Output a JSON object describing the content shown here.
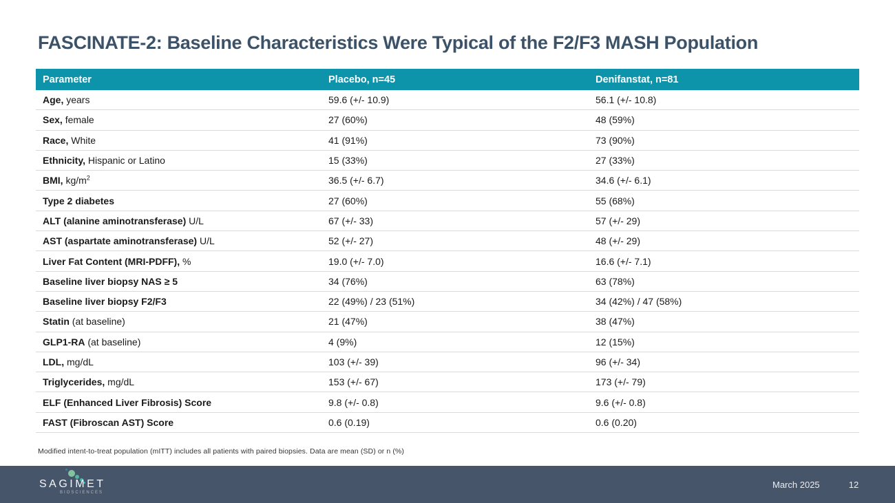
{
  "slide": {
    "title": "FASCINATE-2: Baseline Characteristics Were Typical of the F2/F3 MASH Population",
    "footnote": "Modified intent-to-treat population (mITT) includes all patients with paired biopsies. Data are mean (SD) or n (%)"
  },
  "colors": {
    "header_bg": "#0e94aa",
    "title_text": "#3c5268",
    "footer_bg": "#47556b",
    "row_border": "#d9d9d9",
    "logo_dot_dark_teal": "#2d8a8f",
    "logo_dot_mint": "#82c4a1",
    "logo_dot_teal_green": "#52b69e",
    "logo_dot_teal": "#44b4ae",
    "logo_dot_cyan": "#3db0d6"
  },
  "table": {
    "headers": [
      "Parameter",
      "Placebo, n=45",
      "Denifanstat, n=81"
    ],
    "rows": [
      {
        "bold": "Age,",
        "rest": " years",
        "placebo": "59.6 (+/- 10.9)",
        "denifanstat": "56.1 (+/- 10.8)"
      },
      {
        "bold": "Sex,",
        "rest": " female",
        "placebo": "27 (60%)",
        "denifanstat": "48 (59%)"
      },
      {
        "bold": "Race,",
        "rest": " White",
        "placebo": "41 (91%)",
        "denifanstat": "73 (90%)"
      },
      {
        "bold": "Ethnicity,",
        "rest": " Hispanic or Latino",
        "placebo": "15 (33%)",
        "denifanstat": "27 (33%)"
      },
      {
        "bold": "BMI,",
        "rest": " kg/m",
        "sup": "2",
        "placebo": "36.5 (+/- 6.7)",
        "denifanstat": "34.6 (+/- 6.1)"
      },
      {
        "bold": "Type 2 diabetes",
        "rest": "",
        "placebo": "27 (60%)",
        "denifanstat": "55 (68%)"
      },
      {
        "bold": "ALT (alanine aminotransferase)",
        "rest": " U/L",
        "placebo": "67 (+/- 33)",
        "denifanstat": "57 (+/- 29)"
      },
      {
        "bold": "AST (aspartate aminotransferase)",
        "rest": " U/L",
        "placebo": "52 (+/- 27)",
        "denifanstat": "48 (+/- 29)"
      },
      {
        "bold": "Liver Fat Content (MRI-PDFF),",
        "rest": " %",
        "placebo": "19.0 (+/- 7.0)",
        "denifanstat": "16.6 (+/- 7.1)"
      },
      {
        "bold": "Baseline liver biopsy NAS ≥ 5",
        "rest": "",
        "placebo": "34 (76%)",
        "denifanstat": "63 (78%)"
      },
      {
        "bold": "Baseline liver biopsy F2/F3",
        "rest": "",
        "placebo": "22 (49%) / 23 (51%)",
        "denifanstat": "34 (42%) / 47 (58%)"
      },
      {
        "bold": "Statin",
        "rest": " (at baseline)",
        "placebo": "21 (47%)",
        "denifanstat": "38 (47%)"
      },
      {
        "bold": "GLP1-RA",
        "rest": " (at baseline)",
        "placebo": "4 (9%)",
        "denifanstat": "12 (15%)"
      },
      {
        "bold": "LDL,",
        "rest": " mg/dL",
        "placebo": "103 (+/- 39)",
        "denifanstat": "96 (+/- 34)"
      },
      {
        "bold": "Triglycerides,",
        "rest": " mg/dL",
        "placebo": "153 (+/- 67)",
        "denifanstat": "173 (+/- 79)"
      },
      {
        "bold": "ELF (Enhanced Liver Fibrosis) Score",
        "rest": "",
        "placebo": "9.8 (+/- 0.8)",
        "denifanstat": "9.6 (+/- 0.8)"
      },
      {
        "bold": "FAST (Fibroscan AST) Score",
        "rest": "",
        "placebo": "0.6 (0.19)",
        "denifanstat": "0.6 (0.20)"
      }
    ]
  },
  "footer": {
    "logo_text": "SAGIMET",
    "logo_subtext": "BIOSCIENCES",
    "date": "March 2025",
    "page_number": "12"
  }
}
